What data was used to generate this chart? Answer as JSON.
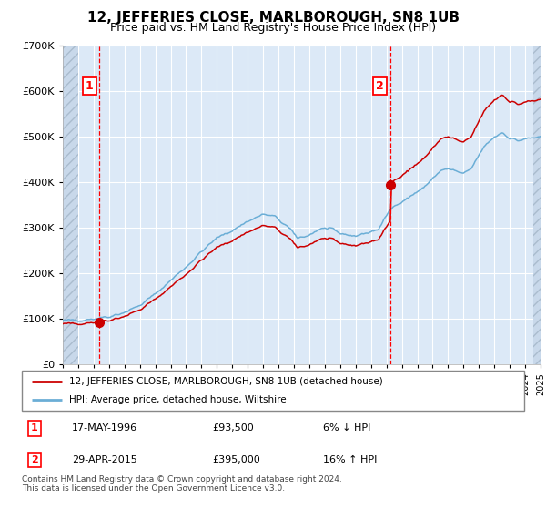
{
  "title": "12, JEFFERIES CLOSE, MARLBOROUGH, SN8 1UB",
  "subtitle": "Price paid vs. HM Land Registry's House Price Index (HPI)",
  "sale1_price": 93500,
  "sale2_price": 395000,
  "legend_line1": "12, JEFFERIES CLOSE, MARLBOROUGH, SN8 1UB (detached house)",
  "legend_line2": "HPI: Average price, detached house, Wiltshire",
  "table_row1": [
    "1",
    "17-MAY-1996",
    "£93,500",
    "6% ↓ HPI"
  ],
  "table_row2": [
    "2",
    "29-APR-2015",
    "£395,000",
    "16% ↑ HPI"
  ],
  "footnote": "Contains HM Land Registry data © Crown copyright and database right 2024.\nThis data is licensed under the Open Government Licence v3.0.",
  "xmin": 1994,
  "xmax": 2025,
  "ymin": 0,
  "ymax": 700000,
  "yticks": [
    0,
    100000,
    200000,
    300000,
    400000,
    500000,
    600000,
    700000
  ],
  "bg_color": "#dce9f7",
  "hpi_color": "#6baed6",
  "price_color": "#cc0000",
  "dot_color": "#cc0000",
  "sale1_x": 1996.37,
  "sale2_x": 2015.25,
  "hatch_left_end": 1995.0,
  "hatch_right_start": 2024.5,
  "anchor_times": [
    1994.0,
    1995.0,
    1996.0,
    1997.0,
    1998.0,
    1999.0,
    2000.0,
    2001.0,
    2002.0,
    2003.0,
    2004.0,
    2005.0,
    2006.0,
    2007.0,
    2007.75,
    2008.5,
    2009.25,
    2010.0,
    2010.5,
    2011.0,
    2011.5,
    2012.0,
    2012.5,
    2013.0,
    2013.5,
    2014.0,
    2014.5,
    2015.25,
    2015.75,
    2016.5,
    2017.0,
    2017.5,
    2018.0,
    2018.5,
    2019.0,
    2019.5,
    2020.0,
    2020.5,
    2021.0,
    2021.5,
    2022.0,
    2022.5,
    2022.75,
    2023.0,
    2023.5,
    2024.0,
    2024.5,
    2025.0
  ],
  "anchor_prices": [
    96000,
    98000,
    101000,
    106000,
    115000,
    130000,
    155000,
    185000,
    215000,
    248000,
    278000,
    295000,
    315000,
    330000,
    325000,
    305000,
    278000,
    285000,
    295000,
    300000,
    295000,
    288000,
    285000,
    283000,
    287000,
    292000,
    298000,
    340000,
    355000,
    368000,
    380000,
    390000,
    410000,
    425000,
    430000,
    425000,
    418000,
    430000,
    460000,
    485000,
    500000,
    510000,
    505000,
    498000,
    492000,
    495000,
    498000,
    500000
  ]
}
